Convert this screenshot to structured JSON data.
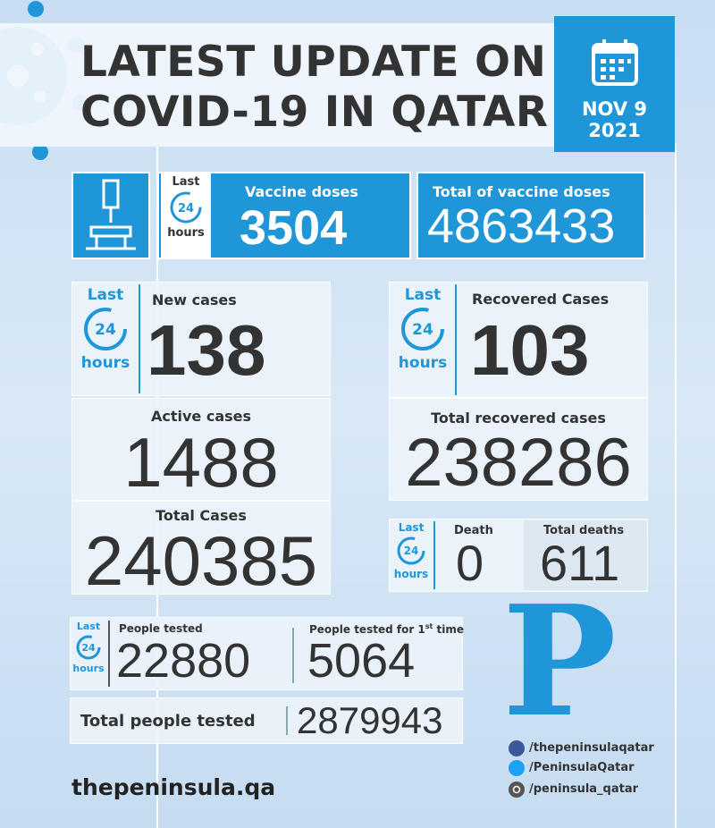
{
  "header": {
    "title_line1": "LATEST UPDATE ON",
    "title_line2": "COVID-19 IN QATAR",
    "date": "NOV 9",
    "year": "2021"
  },
  "badge": {
    "top": "Last",
    "num": "24",
    "bottom": "hours"
  },
  "vaccine": {
    "daily_label": "Vaccine doses",
    "daily_value": 3504,
    "total_label": "Total of vaccine doses",
    "total_value": 4863433
  },
  "cases": {
    "new_label": "New cases",
    "new_value": 138,
    "active_label": "Active cases",
    "active_value": 1488,
    "total_label": "Total Cases",
    "total_value": 240385
  },
  "recovered": {
    "new_label": "Recovered Cases",
    "new_value": 103,
    "total_label": "Total recovered cases",
    "total_value": 238286
  },
  "deaths": {
    "daily_label": "Death",
    "daily_value": 0,
    "total_label": "Total deaths",
    "total_value": 611
  },
  "tests": {
    "daily_label": "People tested",
    "daily_value": 22880,
    "first_label_before": "People tested for 1",
    "first_label_sup": "st",
    "first_label_after": " time",
    "first_value": 5064,
    "total_label": "Total people tested",
    "total_value": 2879943
  },
  "brand": {
    "logo": "P",
    "facebook": "/thepeninsulaqatar",
    "twitter": "/PeninsulaQatar",
    "instagram": "/peninsula_qatar",
    "website": "thepeninsula.qa"
  }
}
